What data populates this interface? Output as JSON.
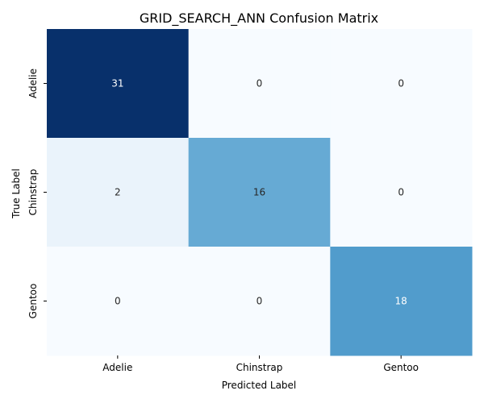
{
  "chart_data": {
    "type": "heatmap",
    "title": "GRID_SEARCH_ANN Confusion Matrix",
    "xlabel": "Predicted Label",
    "ylabel": "True Label",
    "x_categories": [
      "Adelie",
      "Chinstrap",
      "Gentoo"
    ],
    "y_categories": [
      "Adelie",
      "Chinstrap",
      "Gentoo"
    ],
    "values": [
      [
        31,
        0,
        0
      ],
      [
        2,
        16,
        0
      ],
      [
        0,
        0,
        18
      ]
    ],
    "colormap": "Blues",
    "colorbar": false,
    "vmin": 0,
    "vmax": 31
  }
}
